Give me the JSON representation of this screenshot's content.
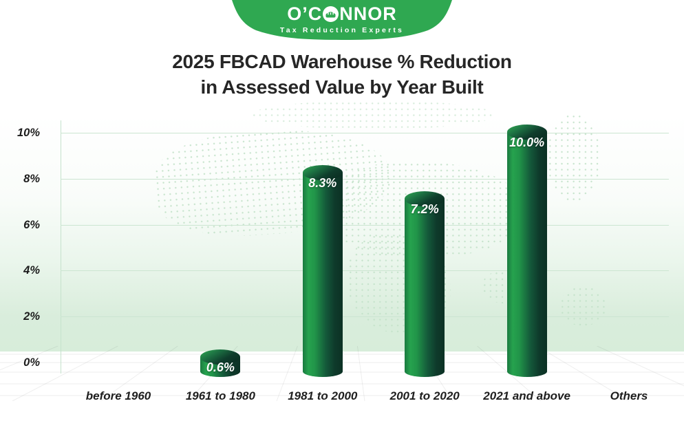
{
  "logo": {
    "brand": "O'CONNOR",
    "brand_prefix": "O’C",
    "brand_suffix": "NNOR",
    "tagline": "Tax Reduction Experts",
    "badge_color": "#2fa851"
  },
  "title": {
    "line1": "2025 FBCAD Warehouse % Reduction",
    "line2": "in Assessed Value by Year Built"
  },
  "chart_data": {
    "type": "bar",
    "style": "3d-cylinder",
    "title": "2025 FBCAD Warehouse % Reduction in Assessed Value by Year Built",
    "categories": [
      "before 1960",
      "1961 to 1980",
      "1981 to 2000",
      "2001 to 2020",
      "2021 and above",
      "Others"
    ],
    "values": [
      null,
      0.6,
      8.3,
      7.2,
      10.0,
      null
    ],
    "value_labels": [
      "",
      "0.6%",
      "8.3%",
      "7.2%",
      "10.0%",
      ""
    ],
    "yticks": [
      {
        "value": 10,
        "label": "10%"
      },
      {
        "value": 8,
        "label": "8%"
      },
      {
        "value": 6,
        "label": "6%"
      },
      {
        "value": 4,
        "label": "4%"
      },
      {
        "value": 2,
        "label": "2%"
      },
      {
        "value": 0,
        "label": "0%"
      }
    ],
    "ylim": [
      0,
      10
    ],
    "grid": true,
    "legend": "none",
    "xlabel": "",
    "ylabel": "",
    "colors": {
      "bar_light": "#26a24e",
      "bar_dark": "#0c3124",
      "grid_line": "#cce5d1",
      "axis_text": "#1c1c1c",
      "value_text": "#ffffff",
      "band_green": "#d7edda",
      "map_dots": "#c3e2c9"
    }
  }
}
